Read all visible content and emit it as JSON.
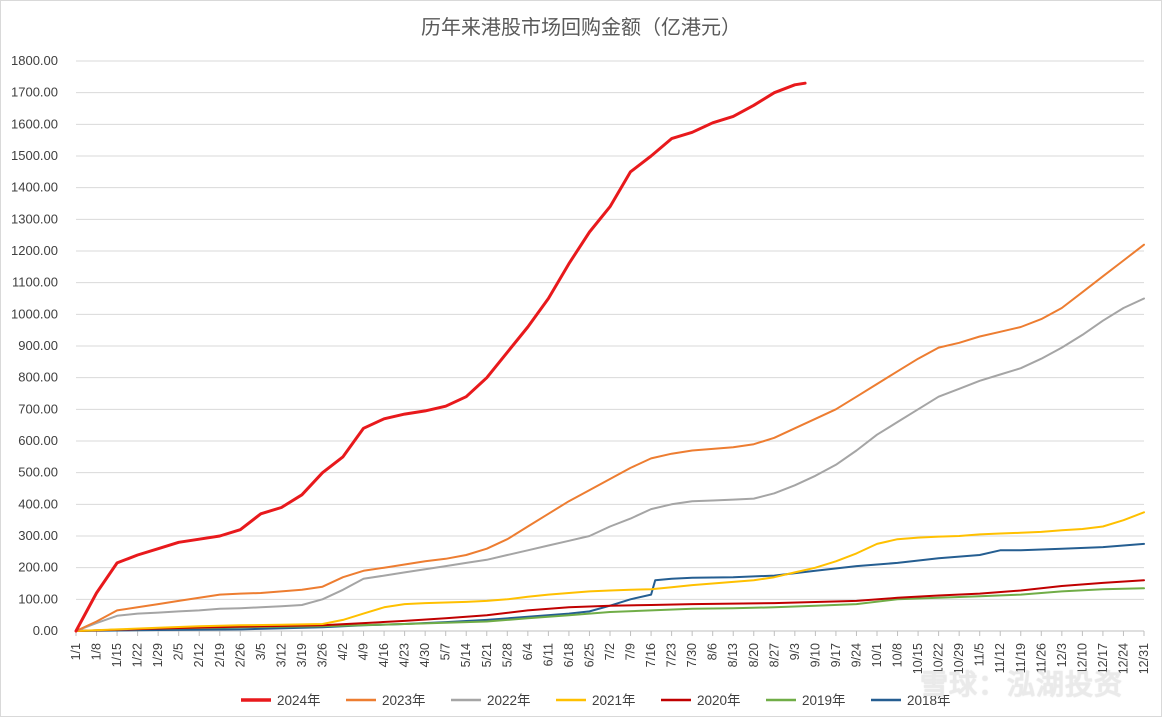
{
  "title": "历年来港股市场回购金额（亿港元）",
  "watermark": "雪球：泓湖投资",
  "chart_data": {
    "type": "line",
    "title": "历年来港股市场回购金额（亿港元）",
    "xlabel": "",
    "ylabel": "",
    "ylim": [
      0,
      1800
    ],
    "yticks": [
      "0.00",
      "100.00",
      "200.00",
      "300.00",
      "400.00",
      "500.00",
      "600.00",
      "700.00",
      "800.00",
      "900.00",
      "1000.00",
      "1100.00",
      "1200.00",
      "1300.00",
      "1400.00",
      "1500.00",
      "1600.00",
      "1700.00",
      "1800.00"
    ],
    "xticks": [
      "1/1",
      "1/8",
      "1/15",
      "1/22",
      "1/29",
      "2/5",
      "2/12",
      "2/19",
      "2/26",
      "3/5",
      "3/12",
      "3/19",
      "3/26",
      "4/2",
      "4/9",
      "4/16",
      "4/23",
      "4/30",
      "5/7",
      "5/14",
      "5/21",
      "5/28",
      "6/4",
      "6/11",
      "6/18",
      "6/25",
      "7/2",
      "7/9",
      "7/16",
      "7/23",
      "7/30",
      "8/6",
      "8/13",
      "8/20",
      "8/27",
      "9/3",
      "9/10",
      "9/17",
      "9/24",
      "10/1",
      "10/8",
      "10/15",
      "10/22",
      "10/29",
      "11/5",
      "11/12",
      "11/19",
      "11/26",
      "12/3",
      "12/10",
      "12/17",
      "12/24",
      "12/31"
    ],
    "grid": true,
    "legend_position": "bottom",
    "series": [
      {
        "name": "2024年",
        "color": "#e8191c",
        "width": 3,
        "x": [
          0,
          1,
          2,
          3,
          4,
          5,
          6,
          7,
          8,
          9,
          10,
          11,
          12,
          13,
          14,
          15,
          16,
          17,
          18,
          19,
          20,
          21,
          22,
          23,
          24,
          25,
          26,
          27,
          28,
          29,
          30,
          31,
          32,
          33,
          34,
          35,
          35.5
        ],
        "y": [
          0,
          120,
          215,
          240,
          260,
          280,
          290,
          300,
          320,
          370,
          390,
          430,
          500,
          550,
          640,
          670,
          685,
          695,
          710,
          740,
          800,
          880,
          960,
          1050,
          1160,
          1260,
          1340,
          1450,
          1500,
          1555,
          1575,
          1605,
          1625,
          1660,
          1700,
          1725,
          1730
        ]
      },
      {
        "name": "2023年",
        "color": "#ed7d31",
        "width": 2,
        "x": [
          0,
          1,
          2,
          3,
          4,
          5,
          6,
          7,
          8,
          9,
          10,
          11,
          12,
          13,
          14,
          15,
          16,
          17,
          18,
          19,
          20,
          21,
          22,
          23,
          24,
          25,
          26,
          27,
          28,
          29,
          30,
          31,
          32,
          33,
          34,
          35,
          36,
          37,
          38,
          39,
          40,
          41,
          42,
          43,
          44,
          45,
          46,
          47,
          48,
          49,
          50,
          51,
          52
        ],
        "y": [
          0,
          30,
          65,
          75,
          85,
          95,
          105,
          115,
          118,
          120,
          125,
          130,
          140,
          170,
          190,
          200,
          210,
          220,
          228,
          240,
          260,
          290,
          330,
          370,
          410,
          445,
          480,
          515,
          545,
          560,
          570,
          575,
          580,
          590,
          610,
          640,
          670,
          700,
          740,
          780,
          820,
          860,
          895,
          910,
          930,
          945,
          960,
          985,
          1020,
          1070,
          1120,
          1170,
          1220
        ]
      },
      {
        "name": "2022年",
        "color": "#a5a5a5",
        "width": 2,
        "x": [
          0,
          1,
          2,
          3,
          4,
          5,
          6,
          7,
          8,
          9,
          10,
          11,
          12,
          13,
          14,
          15,
          16,
          17,
          18,
          19,
          20,
          21,
          22,
          23,
          24,
          25,
          26,
          27,
          28,
          29,
          30,
          31,
          32,
          33,
          34,
          35,
          36,
          37,
          38,
          39,
          40,
          41,
          42,
          43,
          44,
          45,
          46,
          47,
          48,
          49,
          50,
          51,
          52
        ],
        "y": [
          0,
          25,
          48,
          55,
          58,
          62,
          65,
          70,
          72,
          75,
          78,
          82,
          100,
          130,
          165,
          175,
          185,
          195,
          205,
          215,
          225,
          240,
          255,
          270,
          285,
          300,
          330,
          355,
          385,
          400,
          410,
          412,
          415,
          418,
          435,
          460,
          490,
          525,
          570,
          620,
          660,
          700,
          740,
          765,
          790,
          810,
          830,
          860,
          895,
          935,
          980,
          1020,
          1050
        ]
      },
      {
        "name": "2021年",
        "color": "#ffc000",
        "width": 2,
        "x": [
          0,
          2,
          4,
          6,
          8,
          10,
          12,
          13,
          14,
          15,
          16,
          17,
          18,
          19,
          20,
          21,
          22,
          23,
          24,
          25,
          26,
          27,
          28,
          29,
          30,
          31,
          32,
          33,
          34,
          35,
          36,
          37,
          38,
          39,
          40,
          41,
          42,
          43,
          44,
          45,
          46,
          47,
          48,
          49,
          50,
          51,
          52
        ],
        "y": [
          0,
          5,
          10,
          15,
          18,
          20,
          22,
          35,
          55,
          75,
          85,
          88,
          90,
          92,
          95,
          100,
          108,
          115,
          120,
          125,
          128,
          130,
          132,
          138,
          145,
          150,
          155,
          160,
          170,
          185,
          200,
          220,
          245,
          275,
          290,
          295,
          298,
          300,
          305,
          308,
          310,
          313,
          318,
          322,
          330,
          350,
          375
        ]
      },
      {
        "name": "2020年",
        "color": "#c00000",
        "width": 2,
        "x": [
          0,
          4,
          8,
          12,
          14,
          16,
          18,
          20,
          22,
          24,
          26,
          28,
          30,
          34,
          38,
          40,
          42,
          44,
          46,
          48,
          50,
          52
        ],
        "y": [
          0,
          8,
          14,
          18,
          25,
          32,
          40,
          50,
          65,
          75,
          80,
          82,
          85,
          88,
          95,
          105,
          112,
          118,
          128,
          142,
          152,
          160
        ]
      },
      {
        "name": "2019年",
        "color": "#70ad47",
        "width": 2,
        "x": [
          0,
          4,
          8,
          12,
          16,
          20,
          22,
          24,
          26,
          28,
          30,
          32,
          34,
          36,
          38,
          40,
          42,
          44,
          46,
          48,
          50,
          52
        ],
        "y": [
          0,
          8,
          12,
          15,
          22,
          30,
          40,
          50,
          60,
          65,
          70,
          72,
          75,
          80,
          85,
          100,
          105,
          110,
          115,
          125,
          132,
          135
        ]
      },
      {
        "name": "2018年",
        "color": "#255e91",
        "width": 2,
        "x": [
          0,
          4,
          8,
          12,
          14,
          16,
          18,
          20,
          22,
          24,
          25,
          26,
          27,
          28,
          28.2,
          29,
          30,
          32,
          34,
          36,
          38,
          40,
          42,
          44,
          45,
          46,
          48,
          50,
          52
        ],
        "y": [
          0,
          3,
          5,
          12,
          18,
          22,
          28,
          35,
          45,
          55,
          62,
          80,
          100,
          115,
          160,
          165,
          168,
          170,
          175,
          190,
          205,
          215,
          230,
          240,
          255,
          255,
          260,
          265,
          275
        ]
      }
    ]
  }
}
